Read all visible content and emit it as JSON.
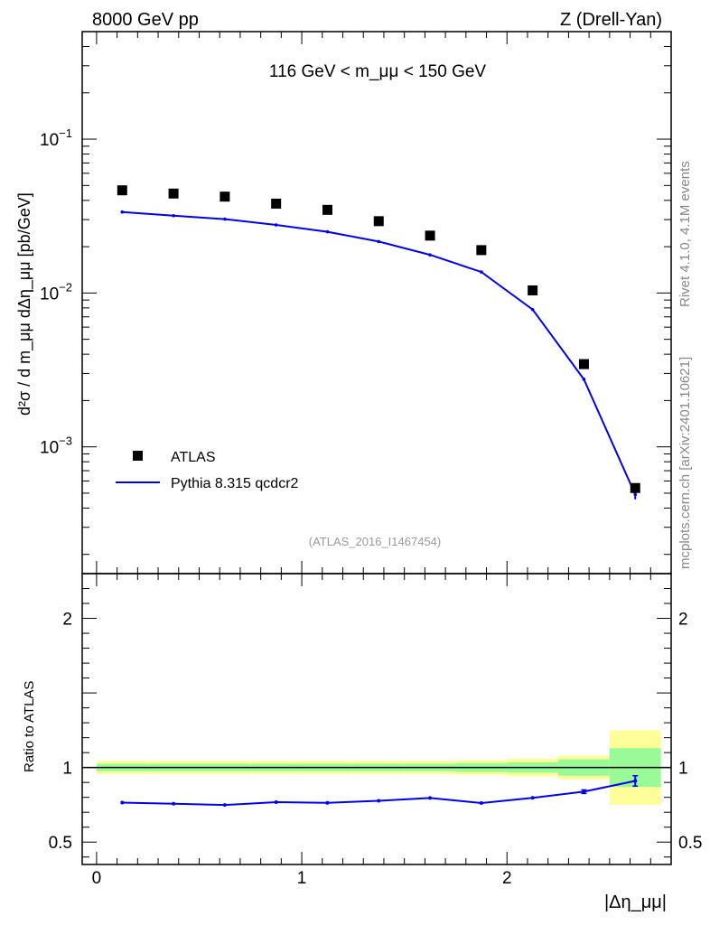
{
  "header": {
    "left": "8000 GeV pp",
    "right": "Z (Drell-Yan)"
  },
  "side_labels": {
    "rivet": "Rivet 4.1.0,  4.1M events",
    "mcplots": "mcplots.cern.ch [arXiv:2401.10621]"
  },
  "colors": {
    "mc": "#0000ee",
    "data": "#000000",
    "band_inner": "#98fb98",
    "band_outer": "#ffff99"
  },
  "chart_data": [
    {
      "type": "scatter",
      "panel": "main",
      "title": "116 GeV < m_μμ < 150 GeV",
      "ylabel": "d²σ / d m_μμ dΔη_μμ [pb/GeV]",
      "yscale": "log",
      "ylim": [
        0.00015,
        0.5
      ],
      "xlim": [
        -0.07,
        2.8
      ],
      "y_tick_labels": [
        "10^-1",
        "10^-2",
        "10^-3"
      ],
      "analysis_id": "(ATLAS_2016_I1467454)",
      "legend": [
        "ATLAS",
        "Pythia 8.315 qcdcr2"
      ],
      "legend_position": "bottom-left",
      "x": [
        0.125,
        0.375,
        0.625,
        0.875,
        1.125,
        1.375,
        1.625,
        1.875,
        2.125,
        2.375,
        2.625
      ],
      "series": [
        {
          "name": "ATLAS",
          "style": "markers",
          "values": [
            0.0465,
            0.0443,
            0.0423,
            0.0381,
            0.0347,
            0.0293,
            0.0236,
            0.019,
            0.0104,
            0.00345,
            0.00054
          ]
        },
        {
          "name": "Pythia 8.315 qcdcr2",
          "style": "line",
          "values": [
            0.0336,
            0.0318,
            0.0302,
            0.0277,
            0.025,
            0.0216,
            0.0177,
            0.0137,
            0.0078,
            0.00275,
            0.00049
          ]
        }
      ]
    },
    {
      "type": "line",
      "panel": "ratio",
      "ylabel": "Ratio to ATLAS",
      "xlabel": "|Δη_μμ|",
      "ylim": [
        0.35,
        2.3
      ],
      "xlim": [
        -0.07,
        2.8
      ],
      "x_tick_labels": [
        "0",
        "1",
        "2"
      ],
      "y_tick_labels": [
        "0.5",
        "1",
        "2"
      ],
      "x_edges": [
        0,
        0.25,
        0.5,
        0.75,
        1.0,
        1.25,
        1.5,
        1.75,
        2.0,
        2.25,
        2.5,
        2.75
      ],
      "x": [
        0.125,
        0.375,
        0.625,
        0.875,
        1.125,
        1.375,
        1.625,
        1.875,
        2.125,
        2.375,
        2.625
      ],
      "series": [
        {
          "name": "Pythia 8.315 qcdcr2 / ATLAS",
          "values": [
            0.765,
            0.757,
            0.749,
            0.768,
            0.763,
            0.777,
            0.796,
            0.762,
            0.797,
            0.838,
            0.91
          ]
        }
      ],
      "band_inner_halfwidth": [
        0.025,
        0.025,
        0.025,
        0.025,
        0.025,
        0.025,
        0.025,
        0.03,
        0.035,
        0.055,
        0.13
      ],
      "band_outer_halfwidth": [
        0.045,
        0.045,
        0.045,
        0.045,
        0.045,
        0.045,
        0.045,
        0.05,
        0.06,
        0.08,
        0.25
      ]
    }
  ]
}
